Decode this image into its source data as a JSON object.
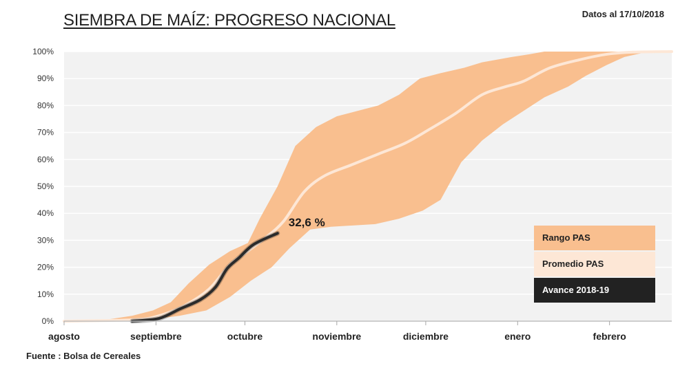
{
  "header": {
    "title": "SIEMBRA DE MAÍZ: PROGRESO NACIONAL",
    "date_info": "Datos al 17/10/2018"
  },
  "footer": {
    "source": "Fuente : Bolsa de Cereales"
  },
  "colors": {
    "range": "#f9bf8f",
    "mean": "#fde7d6",
    "current": "#2b2b2b",
    "plot_bg": "#f2f2f2",
    "grid": "#ffffff"
  },
  "chart_data": {
    "type": "area",
    "title": "SIEMBRA DE MAÍZ: PROGRESO NACIONAL",
    "xlabel": "",
    "ylabel": "",
    "x_unit": "days since August 1",
    "xlim": [
      0,
      205
    ],
    "ylim": [
      0,
      100
    ],
    "grid": true,
    "yticks": [
      0,
      10,
      20,
      30,
      40,
      50,
      60,
      70,
      80,
      90,
      100
    ],
    "ytick_labels": [
      "0%",
      "10%",
      "20%",
      "30%",
      "40%",
      "50%",
      "60%",
      "70%",
      "80%",
      "90%",
      "100%"
    ],
    "xticks": [
      0,
      31,
      61,
      92,
      122,
      153,
      184
    ],
    "xtick_labels": [
      "agosto",
      "septiembre",
      "octubre",
      "noviembre",
      "diciembre",
      "enero",
      "febrero"
    ],
    "legend": [
      "Rango PAS",
      "Promedio PAS",
      "Avance 2018-19"
    ],
    "legend_position": "right",
    "annotation": {
      "text": "32,6 %",
      "x": 72,
      "y": 32.6
    },
    "series": [
      {
        "name": "Rango PAS (máximo)",
        "x": [
          0,
          14,
          23,
          30,
          36,
          42,
          49,
          56,
          62,
          66,
          72,
          78,
          85,
          92,
          99,
          106,
          113,
          120,
          127,
          135,
          141,
          151,
          157,
          162,
          205
        ],
        "values": [
          0,
          0.5,
          2,
          4,
          7,
          14,
          21,
          26,
          29,
          38,
          50,
          65,
          72,
          76,
          78,
          80,
          84,
          90,
          92,
          94,
          96,
          98,
          99,
          100,
          100
        ]
      },
      {
        "name": "Rango PAS (mínimo)",
        "x": [
          0,
          23,
          32,
          39,
          48,
          56,
          63,
          70,
          76,
          83,
          90,
          105,
          113,
          121,
          127,
          134,
          141,
          148,
          155,
          162,
          170,
          176,
          183,
          189,
          196,
          205
        ],
        "values": [
          0,
          0,
          1,
          2,
          4,
          9,
          15,
          20,
          27,
          34,
          35,
          36,
          38,
          41,
          45,
          59,
          67,
          73,
          78,
          83,
          87,
          91,
          95,
          98,
          99.7,
          100
        ]
      },
      {
        "name": "Promedio PAS",
        "x": [
          0,
          23,
          32,
          41,
          49,
          56,
          62,
          68,
          74,
          81,
          88,
          97,
          106,
          115,
          123,
          132,
          141,
          149,
          155,
          164,
          174,
          183,
          192,
          205
        ],
        "values": [
          0,
          0.5,
          2,
          6,
          12,
          21,
          26,
          31,
          37,
          48,
          54,
          58,
          62,
          66,
          71,
          77,
          84,
          87,
          89,
          94,
          97,
          99,
          99.8,
          100
        ]
      },
      {
        "name": "Avance 2018-19",
        "x": [
          23,
          32,
          39,
          46,
          51,
          55,
          59,
          64,
          72
        ],
        "values": [
          0,
          1,
          4.5,
          8,
          12.5,
          19.5,
          23.5,
          28.5,
          32.6
        ]
      }
    ]
  }
}
